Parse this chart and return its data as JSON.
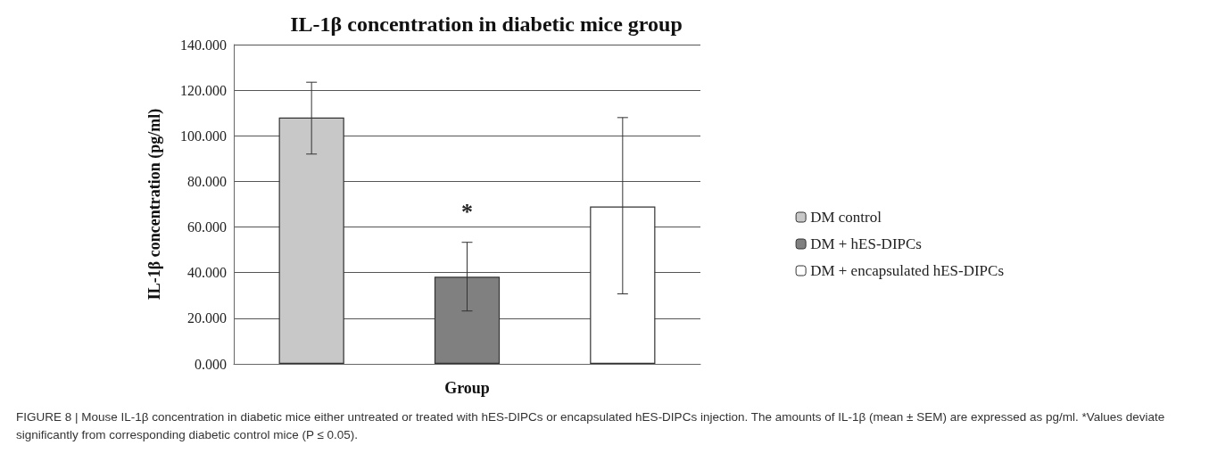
{
  "chart_data": {
    "type": "bar",
    "title": "IL-1β concentration in diabetic mice group",
    "xlabel": "Group",
    "ylabel": "IL-1β concentration (pg/ml)",
    "categories": [
      null
    ],
    "series": [
      {
        "name": "DM control",
        "color": "#c8c8c8",
        "values": [
          108
        ],
        "errors": [
          [
            92,
            123.5
          ]
        ]
      },
      {
        "name": "DM + hES-DIPCs",
        "color": "#808080",
        "values": [
          38.2
        ],
        "errors": [
          [
            23.2,
            53.3
          ]
        ]
      },
      {
        "name": "DM + encapsulated hES-DIPCs",
        "color": "#ffffff",
        "values": [
          69
        ],
        "errors": [
          [
            30.7,
            108
          ]
        ]
      }
    ],
    "ylim": [
      0,
      140
    ],
    "yticks": [
      {
        "value": 0,
        "label": "0.000"
      },
      {
        "value": 20,
        "label": "20.000"
      },
      {
        "value": 40,
        "label": "40.000"
      },
      {
        "value": 60,
        "label": "60.000"
      },
      {
        "value": 80,
        "label": "80.000"
      },
      {
        "value": 100,
        "label": "100.000"
      },
      {
        "value": 120,
        "label": "120.000"
      },
      {
        "value": 140,
        "label": "140.000"
      }
    ],
    "grid": "y",
    "legend": "right",
    "annotations": [
      "*",
      "FIGURE 8 | Mouse IL-1β concentration in diabetic mice either untreated or treated with hES-DIPCs or encapsulated hES-DIPCs injection. The amounts of IL-1β (mean ± SEM) are expressed as pg/ml. *Values deviate significantly from corresponding diabetic control mice (P ≤ 0.05)."
    ]
  }
}
